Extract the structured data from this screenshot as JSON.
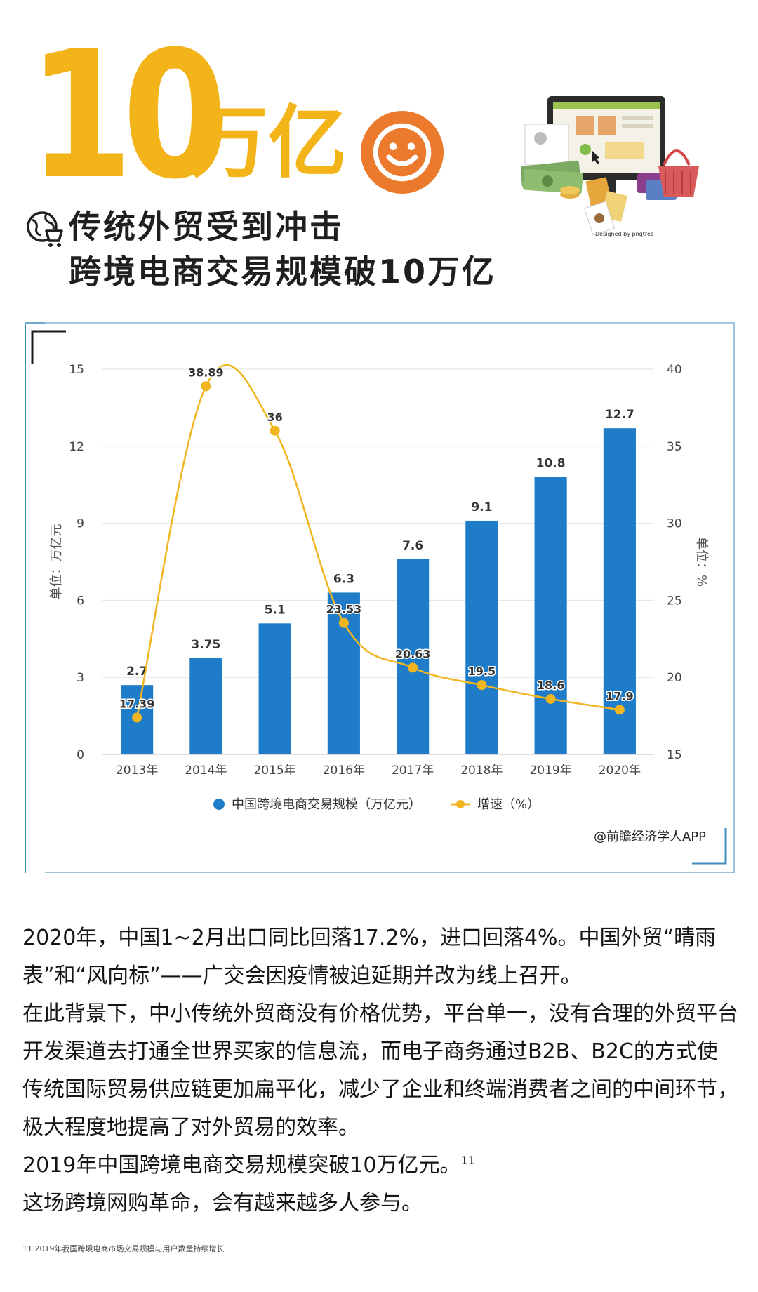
{
  "header": {
    "hero_number": "10",
    "hero_unit": "万亿",
    "subtitle_line1": "传统外贸受到冲击",
    "subtitle_line2": "跨境电商交易规模破10万亿",
    "illustration_credit": "Designed by pngtree",
    "hero_color": "#f2b418",
    "smiley_color": "#ec7a2c",
    "icon_names": [
      "smiley-icon",
      "shopping-cart-icon"
    ]
  },
  "chart_data": {
    "type": "bar",
    "title": "",
    "categories": [
      "2013年",
      "2014年",
      "2015年",
      "2016年",
      "2017年",
      "2018年",
      "2019年",
      "2020年"
    ],
    "series": [
      {
        "name": "中国跨境电商交易规模（万亿元）",
        "type": "bar",
        "axis": "left",
        "color": "#1f7cc8",
        "values": [
          2.7,
          3.75,
          5.1,
          6.3,
          7.6,
          9.1,
          10.8,
          12.7
        ],
        "labels": [
          "2.7",
          "3.75",
          "5.1",
          "6.3",
          "7.6",
          "9.1",
          "10.8",
          "12.7"
        ]
      },
      {
        "name": "增速（%）",
        "type": "line",
        "axis": "right",
        "color": "#f0b51f",
        "values": [
          17.39,
          38.89,
          36,
          23.53,
          20.63,
          19.5,
          18.6,
          17.9
        ],
        "labels": [
          "17.39",
          "38.89",
          "36",
          "23.53",
          "20.63",
          "19.5",
          "18.6",
          "17.9"
        ]
      }
    ],
    "ylabel_left": "单位：万亿元",
    "ylabel_right": "单位：%",
    "ylim_left": [
      0,
      15
    ],
    "yticks_left": [
      "0",
      "3",
      "6",
      "9",
      "12",
      "15"
    ],
    "ylim_right": [
      15,
      40
    ],
    "yticks_right": [
      "15",
      "20",
      "25",
      "30",
      "35",
      "40"
    ],
    "grid": true,
    "legend_position": "bottom",
    "frame_color": "#3c8ebd"
  },
  "chart_credit": "@前瞻经济学人APP",
  "body": {
    "p1": "2020年，中国1~2月出口同比回落17.2%，进口回落4%。中国外贸“晴雨表”和“风向标”——广交会因疫情被迫延期并改为线上召开。",
    "p2": "在此背景下，中小传统外贸商没有价格优势，平台单一，没有合理的外贸平台开发渠道去打通全世界买家的信息流，而电子商务通过B2B、B2C的方式使传统国际贸易供应链更加扁平化，减少了企业和终端消费者之间的中间环节，极大程度地提高了对外贸易的效率。",
    "p3": "2019年中国跨境电商交易规模突破10万亿元。",
    "p3_ref": "11",
    "p4": "这场跨境网购革命，会有越来越多人参与。"
  },
  "footnote": "11.2019年我国跨境电商市场交易规模与用户数量持续增长"
}
